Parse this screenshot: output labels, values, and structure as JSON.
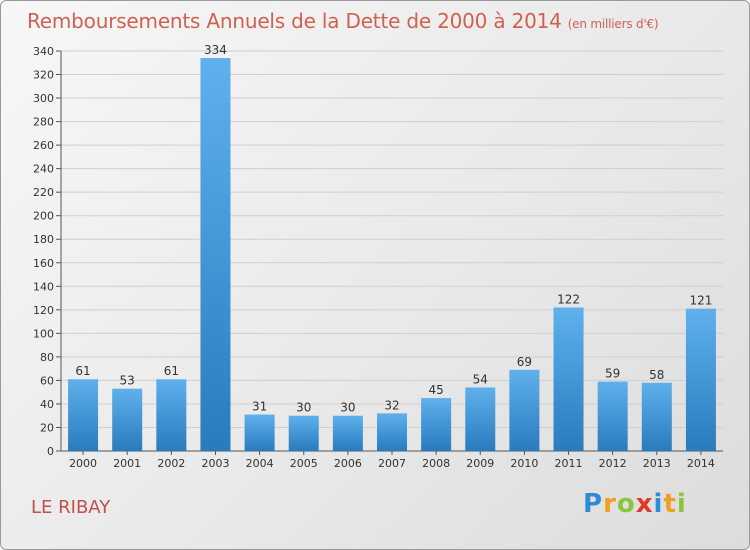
{
  "header": {
    "title": "Remboursements Annuels de la Dette de 2000 à 2014",
    "unit": "(en milliers d'€)"
  },
  "footer": {
    "commune": "LE RIBAY",
    "logo_text": "Proxiti",
    "logo_letters": [
      {
        "ch": "P",
        "color": "#2e8bd8"
      },
      {
        "ch": "r",
        "color": "#f0a020"
      },
      {
        "ch": "o",
        "color": "#8cc43c"
      },
      {
        "ch": "x",
        "color": "#e2382a"
      },
      {
        "ch": "i",
        "color": "#2e8bd8"
      },
      {
        "ch": "t",
        "color": "#f0a020"
      },
      {
        "ch": "i",
        "color": "#8cc43c"
      }
    ]
  },
  "chart_data": {
    "type": "bar",
    "title": "Remboursements Annuels de la Dette de 2000 à 2014",
    "subtitle": "(en milliers d'€)",
    "categories": [
      "2000",
      "2001",
      "2002",
      "2003",
      "2004",
      "2005",
      "2006",
      "2007",
      "2008",
      "2009",
      "2010",
      "2011",
      "2012",
      "2013",
      "2014"
    ],
    "values": [
      61,
      53,
      61,
      334,
      31,
      30,
      30,
      32,
      45,
      54,
      69,
      122,
      59,
      58,
      121
    ],
    "ylim": [
      0,
      340
    ],
    "yticks": [
      0,
      20,
      40,
      60,
      80,
      100,
      120,
      140,
      160,
      180,
      200,
      220,
      240,
      260,
      280,
      300,
      320,
      340
    ],
    "grid": true,
    "bar_color_top": "#5fb0ec",
    "bar_color_bottom": "#2a7bbd"
  }
}
